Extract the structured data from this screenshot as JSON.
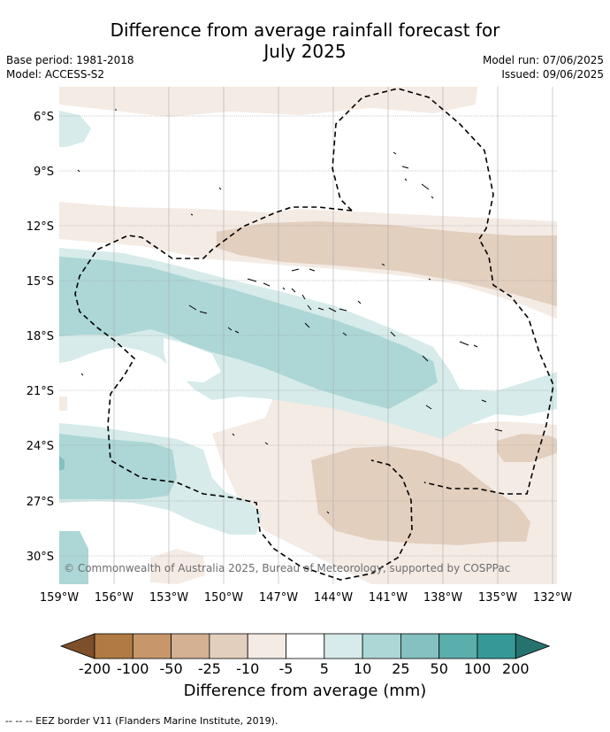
{
  "header": {
    "title_line1": "Difference from average rainfall forecast for",
    "title_line2": "July 2025",
    "base_period": "Base period: 1981-2018",
    "model": "Model: ACCESS-S2",
    "model_run": "Model run: 07/06/2025",
    "issued": "Issued: 09/06/2025"
  },
  "map": {
    "lat_labels": [
      "6°S",
      "9°S",
      "12°S",
      "15°S",
      "18°S",
      "21°S",
      "24°S",
      "27°S",
      "30°S"
    ],
    "lon_labels": [
      "159°W",
      "156°W",
      "153°W",
      "150°W",
      "147°W",
      "144°W",
      "141°W",
      "138°W",
      "135°W",
      "132°W"
    ],
    "credit": "© Commonwealth of Australia 2025, Bureau of Meteorology, supported by COSPPac"
  },
  "colorbar": {
    "tick_labels": [
      "-200",
      "-100",
      "-50",
      "-25",
      "-10",
      "-5",
      "5",
      "10",
      "25",
      "50",
      "100",
      "200"
    ],
    "colors": [
      "#7d4f2a",
      "#b07a44",
      "#c7966a",
      "#d4b192",
      "#e3cfbe",
      "#f4ebe5",
      "#ffffff",
      "#d6ebea",
      "#acd7d6",
      "#84c1c0",
      "#5aaeac",
      "#359a97",
      "#26726f"
    ],
    "label": "Difference from average (mm)"
  },
  "footnote": "--  --  -- EEZ border V11 (Flanders Marine Institute, 2019)."
}
